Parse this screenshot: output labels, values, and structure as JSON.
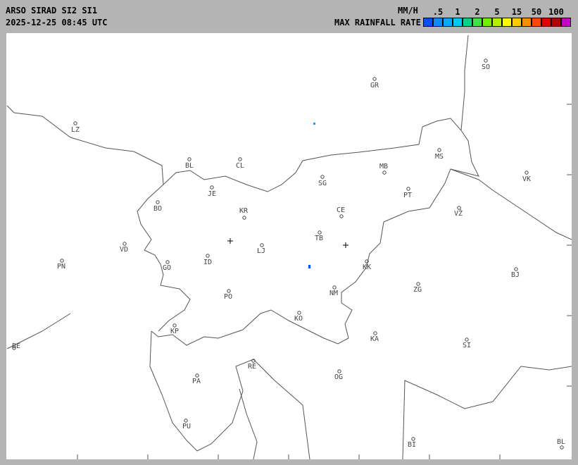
{
  "header": {
    "title": "ARSO SIRAD SI2 SI1",
    "timestamp": "2025-12-25 08:45 UTC",
    "unit": "MM/H",
    "legend_title": "MAX RAINFALL RATE"
  },
  "legend": {
    "ticks": [
      ".5",
      "1",
      "2",
      "5",
      "15",
      "50",
      "100"
    ],
    "colors": [
      "#0050ff",
      "#0a8cff",
      "#00aaff",
      "#00c8ff",
      "#00d282",
      "#3ce63c",
      "#6ef000",
      "#b4f000",
      "#ffff00",
      "#ffc800",
      "#ff8c00",
      "#ff4600",
      "#dc0000",
      "#b40000",
      "#c800c8"
    ]
  },
  "map": {
    "cities": [
      "SO",
      "GR",
      "LZ",
      "MS",
      "BL",
      "CL",
      "MB",
      "VK",
      "SG",
      "JE",
      "PT",
      "BO",
      "KR",
      "CE",
      "VŽ",
      "TB",
      "LJ",
      "VD",
      "ID",
      "PN",
      "GO",
      "KK",
      "BJ",
      "ZG",
      "NM",
      "PO",
      "KO",
      "KP",
      "KA",
      "SI",
      "BE",
      "RE",
      "OG",
      "PA",
      "PU",
      "BI",
      "BL"
    ],
    "radar_sites": 2,
    "echo_colors": [
      "#00aaff",
      "#0050ff"
    ]
  }
}
